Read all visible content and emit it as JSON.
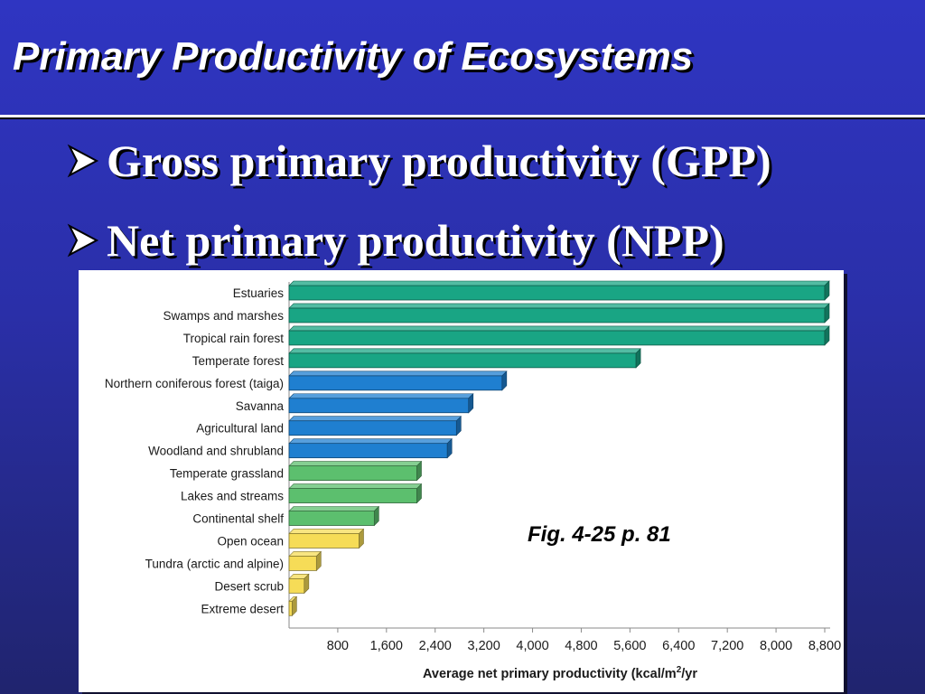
{
  "slide": {
    "title": "Primary Productivity of Ecosystems",
    "bullets": [
      {
        "text": "Gross primary productivity (GPP)"
      },
      {
        "text": "Net primary productivity (NPP)"
      }
    ],
    "figure_ref": "Fig. 4-25 p. 81"
  },
  "colors": {
    "background": "#2a2fa8",
    "teal": "#19a584",
    "blue": "#1f7fd0",
    "green": "#5cbf6e",
    "yellow": "#f6dc57"
  },
  "chart_data": {
    "type": "bar",
    "orientation": "horizontal",
    "categories": [
      "Estuaries",
      "Swamps and marshes",
      "Tropical rain forest",
      "Temperate forest",
      "Northern coniferous forest (taiga)",
      "Savanna",
      "Agricultural land",
      "Woodland and shrubland",
      "Temperate grassland",
      "Lakes and streams",
      "Continental shelf",
      "Open ocean",
      "Tundra (arctic and alpine)",
      "Desert scrub",
      "Extreme desert"
    ],
    "values": [
      8800,
      8800,
      8800,
      5700,
      3500,
      2950,
      2750,
      2600,
      2100,
      2100,
      1400,
      1150,
      450,
      250,
      50
    ],
    "bar_colors": [
      "#19a584",
      "#19a584",
      "#19a584",
      "#19a584",
      "#1f7fd0",
      "#1f7fd0",
      "#1f7fd0",
      "#1f7fd0",
      "#5cbf6e",
      "#5cbf6e",
      "#5cbf6e",
      "#f6dc57",
      "#f6dc57",
      "#f6dc57",
      "#f6dc57"
    ],
    "xticks": [
      "800",
      "1,600",
      "2,400",
      "3,200",
      "4,000",
      "4,800",
      "5,600",
      "6,400",
      "7,200",
      "8,000",
      "8,800"
    ],
    "xtick_values": [
      800,
      1600,
      2400,
      3200,
      4000,
      4800,
      5600,
      6400,
      7200,
      8000,
      8800
    ],
    "xlim": [
      0,
      8800
    ],
    "xlabel_main": "Average net primary productivity (kcal/m",
    "xlabel_sup": "2",
    "xlabel_tail": "/yr",
    "grid": false
  }
}
